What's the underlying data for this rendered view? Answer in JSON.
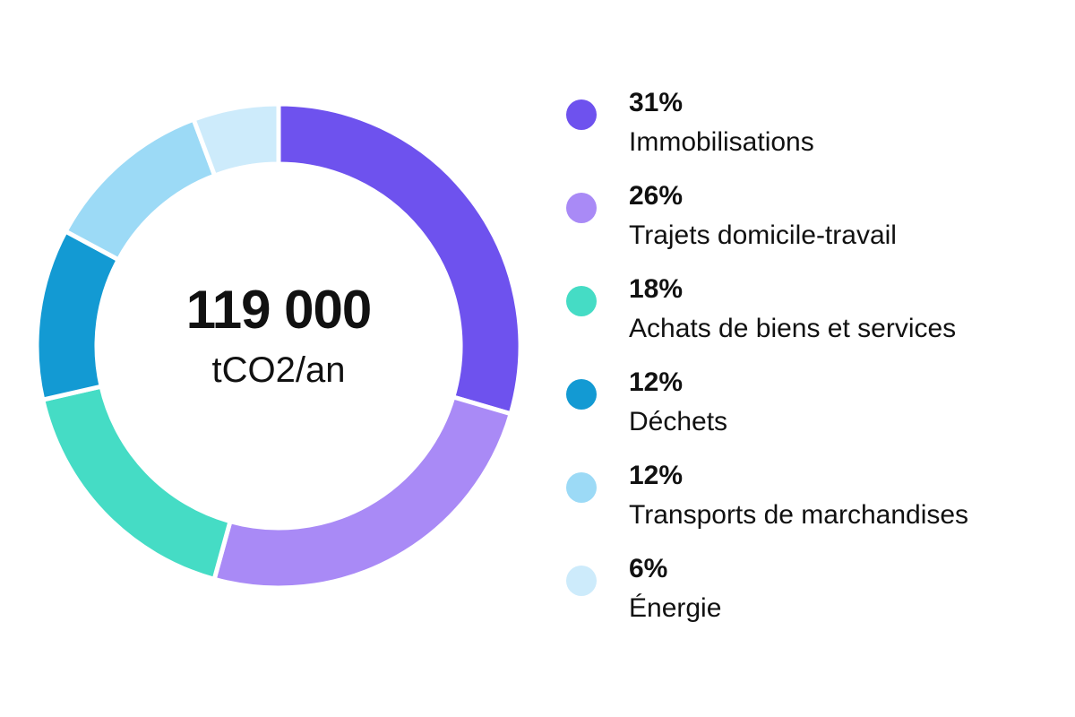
{
  "center": {
    "value": "119 000",
    "unit": "tCO2/an"
  },
  "chart_data": {
    "type": "pie",
    "style": "donut",
    "legend_position": "right",
    "slices": [
      {
        "label": "Immobilisations",
        "value": 31,
        "value_label": "31%",
        "color": "#6e52ee"
      },
      {
        "label": "Trajets domicile-travail",
        "value": 26,
        "value_label": "26%",
        "color": "#a98af6"
      },
      {
        "label": "Achats de biens et services",
        "value": 18,
        "value_label": "18%",
        "color": "#45dcc5"
      },
      {
        "label": "Déchets",
        "value": 12,
        "value_label": "12%",
        "color": "#139ad3"
      },
      {
        "label": "Transports de marchandises",
        "value": 12,
        "value_label": "12%",
        "color": "#9cdaf6"
      },
      {
        "label": "Énergie",
        "value": 6,
        "value_label": "6%",
        "color": "#cdebfb"
      }
    ]
  }
}
